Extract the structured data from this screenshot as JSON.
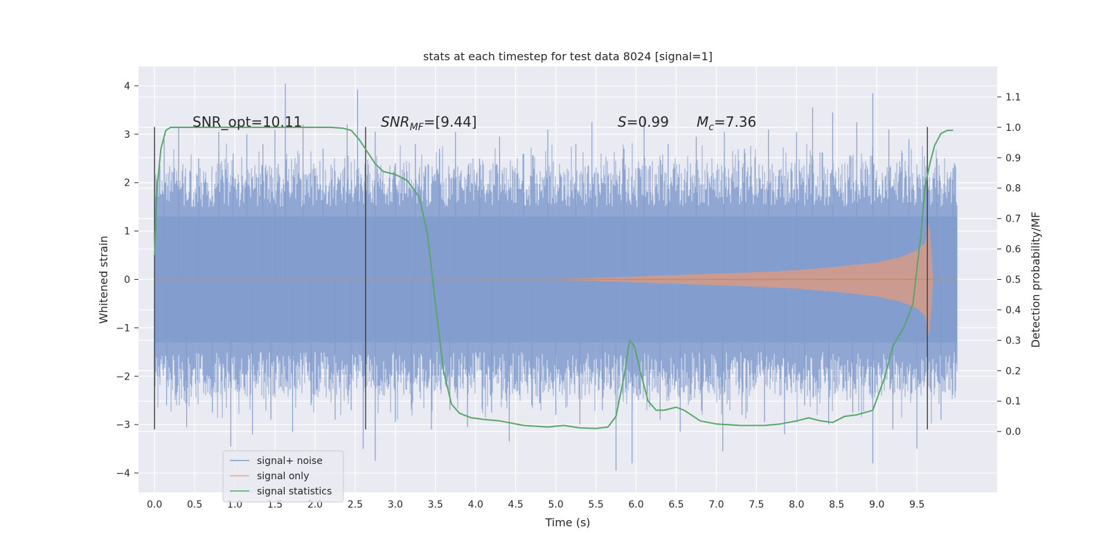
{
  "chart_data": {
    "type": "line",
    "title": "stats at each timestep for test data 8024 [signal=1]",
    "xlabel": "Time (s)",
    "ylabel": "Whitened strain",
    "ylabel_right": "Detection probability/MF",
    "xlim": [
      -0.2,
      10.5
    ],
    "ylim": [
      -4.4,
      4.4
    ],
    "ylim_right": [
      -0.2,
      1.2
    ],
    "x_ticks": [
      "0.0",
      "0.5",
      "1.0",
      "1.5",
      "2.0",
      "2.5",
      "3.0",
      "3.5",
      "4.0",
      "4.5",
      "5.0",
      "5.5",
      "6.0",
      "6.5",
      "7.0",
      "7.5",
      "8.0",
      "8.5",
      "9.0",
      "9.5"
    ],
    "y_ticks": [
      "−4",
      "−3",
      "−2",
      "−1",
      "0",
      "1",
      "2",
      "3",
      "4"
    ],
    "y_ticks_right": [
      "0.0",
      "0.1",
      "0.2",
      "0.3",
      "0.4",
      "0.5",
      "0.6",
      "0.7",
      "0.8",
      "0.9",
      "1.0",
      "1.1"
    ],
    "grid": true,
    "legend_position": "lower-left",
    "annotations": {
      "snr_opt": "SNR_opt=10.11",
      "snr_mf_main": "SNR",
      "snr_mf_sub": "MF",
      "snr_mf_value": "=[9.44]",
      "s_main": "S",
      "s_value": "=0.99",
      "mc_main": "M",
      "mc_sub": "c",
      "mc_value": "=7.36"
    },
    "vertical_markers_x": [
      0.0,
      2.63,
      9.63
    ],
    "series": [
      {
        "name": "signal+ noise",
        "color": "#7f9bcc",
        "description_range": [
          -3.9,
          4.05
        ],
        "x_range": [
          0.0,
          10.0
        ],
        "band": {
          "x": [
            0.0,
            10.0
          ],
          "y_low": -1.3,
          "y_high": 1.3
        },
        "spikes": [
          [
            0.12,
            2.9
          ],
          [
            0.3,
            3.15
          ],
          [
            0.55,
            2.5
          ],
          [
            0.8,
            3.05
          ],
          [
            0.98,
            2.6
          ],
          [
            1.15,
            3.0
          ],
          [
            1.35,
            2.8
          ],
          [
            1.5,
            3.1
          ],
          [
            1.63,
            4.05
          ],
          [
            1.85,
            3.2
          ],
          [
            2.1,
            2.7
          ],
          [
            2.4,
            3.2
          ],
          [
            2.53,
            3.92
          ],
          [
            2.75,
            3.05
          ],
          [
            3.0,
            2.4
          ],
          [
            3.25,
            2.8
          ],
          [
            3.55,
            2.7
          ],
          [
            3.75,
            3.05
          ],
          [
            4.05,
            2.5
          ],
          [
            4.3,
            2.95
          ],
          [
            4.6,
            2.6
          ],
          [
            4.9,
            3.1
          ],
          [
            5.25,
            2.8
          ],
          [
            5.45,
            3.25
          ],
          [
            5.85,
            2.7
          ],
          [
            6.1,
            3.35
          ],
          [
            6.4,
            2.8
          ],
          [
            6.75,
            2.95
          ],
          [
            7.1,
            3.05
          ],
          [
            7.35,
            2.7
          ],
          [
            7.65,
            3.1
          ],
          [
            8.0,
            3.05
          ],
          [
            8.2,
            3.55
          ],
          [
            8.45,
            3.45
          ],
          [
            8.75,
            3.25
          ],
          [
            8.95,
            3.85
          ],
          [
            9.15,
            3.1
          ],
          [
            9.4,
            2.9
          ],
          [
            9.75,
            2.5
          ],
          [
            9.95,
            2.3
          ],
          [
            0.15,
            -2.6
          ],
          [
            0.4,
            -3.05
          ],
          [
            0.72,
            -2.75
          ],
          [
            0.95,
            -3.45
          ],
          [
            1.22,
            -3.2
          ],
          [
            1.45,
            -2.9
          ],
          [
            1.72,
            -3.15
          ],
          [
            1.95,
            -2.6
          ],
          [
            2.25,
            -2.9
          ],
          [
            2.45,
            -2.7
          ],
          [
            2.6,
            -3.5
          ],
          [
            2.75,
            -3.75
          ],
          [
            3.0,
            -2.95
          ],
          [
            3.2,
            -2.6
          ],
          [
            3.45,
            -3.1
          ],
          [
            3.68,
            -2.7
          ],
          [
            3.9,
            -3.05
          ],
          [
            4.2,
            -2.75
          ],
          [
            4.42,
            -3.35
          ],
          [
            4.7,
            -2.6
          ],
          [
            5.0,
            -2.8
          ],
          [
            5.3,
            -3.0
          ],
          [
            5.58,
            -2.7
          ],
          [
            5.75,
            -3.95
          ],
          [
            5.95,
            -3.8
          ],
          [
            6.3,
            -2.9
          ],
          [
            6.55,
            -3.15
          ],
          [
            6.82,
            -2.7
          ],
          [
            7.08,
            -3.55
          ],
          [
            7.32,
            -2.8
          ],
          [
            7.6,
            -2.95
          ],
          [
            7.85,
            -3.2
          ],
          [
            8.1,
            -2.6
          ],
          [
            8.4,
            -3.0
          ],
          [
            8.7,
            -2.75
          ],
          [
            8.95,
            -3.8
          ],
          [
            9.2,
            -3.1
          ],
          [
            9.5,
            -3.5
          ],
          [
            9.8,
            -2.9
          ],
          [
            9.98,
            -2.3
          ]
        ]
      },
      {
        "name": "signal only",
        "color": "#dd8452",
        "envelope": [
          [
            0.0,
            0.0
          ],
          [
            5.0,
            0.01
          ],
          [
            5.5,
            0.03
          ],
          [
            6.0,
            0.06
          ],
          [
            6.5,
            0.09
          ],
          [
            7.0,
            0.12
          ],
          [
            7.5,
            0.15
          ],
          [
            8.0,
            0.19
          ],
          [
            8.5,
            0.26
          ],
          [
            9.0,
            0.35
          ],
          [
            9.3,
            0.46
          ],
          [
            9.5,
            0.6
          ],
          [
            9.6,
            0.75
          ],
          [
            9.65,
            1.2
          ],
          [
            9.68,
            0.6
          ],
          [
            9.7,
            0.0
          ],
          [
            10.0,
            0.0
          ]
        ]
      },
      {
        "name": "signal statistics",
        "color": "#55a868",
        "axis": "right",
        "x": [
          0.0,
          0.03,
          0.08,
          0.14,
          0.2,
          0.3,
          0.5,
          1.0,
          1.5,
          2.0,
          2.2,
          2.35,
          2.45,
          2.55,
          2.65,
          2.75,
          2.85,
          3.0,
          3.15,
          3.3,
          3.4,
          3.5,
          3.6,
          3.7,
          3.8,
          3.95,
          4.1,
          4.3,
          4.6,
          4.9,
          5.1,
          5.3,
          5.5,
          5.65,
          5.75,
          5.85,
          5.92,
          5.98,
          6.05,
          6.15,
          6.25,
          6.35,
          6.5,
          6.6,
          6.8,
          7.0,
          7.3,
          7.6,
          7.8,
          8.0,
          8.15,
          8.3,
          8.45,
          8.6,
          8.75,
          8.95,
          9.1,
          9.2,
          9.35,
          9.45,
          9.55,
          9.6,
          9.66,
          9.72,
          9.8,
          9.88,
          9.95
        ],
        "y": [
          0.58,
          0.8,
          0.93,
          0.99,
          1.0,
          1.0,
          1.0,
          1.0,
          1.0,
          1.0,
          1.0,
          0.997,
          0.99,
          0.96,
          0.92,
          0.88,
          0.855,
          0.845,
          0.825,
          0.77,
          0.65,
          0.42,
          0.2,
          0.09,
          0.06,
          0.045,
          0.04,
          0.035,
          0.02,
          0.015,
          0.02,
          0.012,
          0.01,
          0.015,
          0.05,
          0.18,
          0.3,
          0.28,
          0.2,
          0.1,
          0.07,
          0.07,
          0.08,
          0.07,
          0.035,
          0.025,
          0.02,
          0.02,
          0.025,
          0.035,
          0.045,
          0.035,
          0.03,
          0.05,
          0.055,
          0.07,
          0.18,
          0.28,
          0.35,
          0.42,
          0.65,
          0.8,
          0.88,
          0.94,
          0.98,
          0.99,
          0.99
        ]
      }
    ]
  }
}
